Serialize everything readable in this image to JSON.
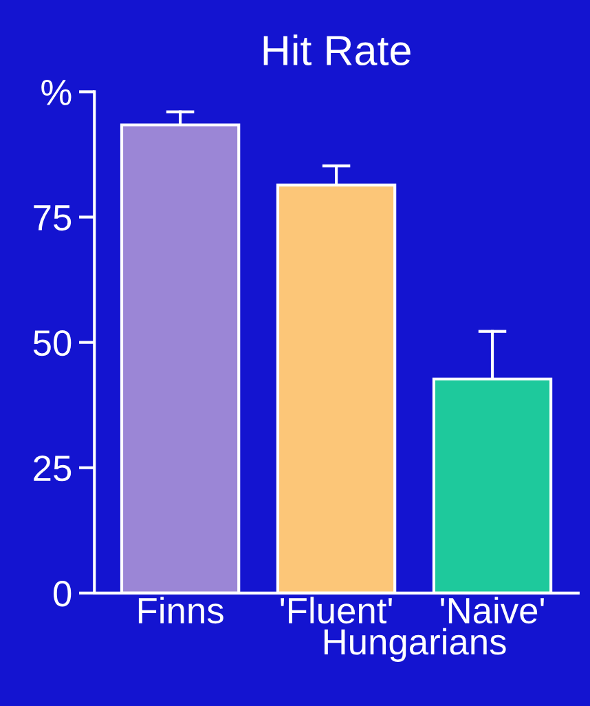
{
  "chart_data": {
    "type": "bar",
    "title": "Hit Rate",
    "xlabel": "Hungarians",
    "categories": [
      "Finns",
      "'Fluent'",
      "'Naive'"
    ],
    "values": [
      93.4,
      81.4,
      42.7
    ],
    "colors": [
      "#9b86d6",
      "#fcc678",
      "#1ec99c"
    ],
    "errors": [
      [
        93.4,
        96
      ],
      [
        81.4,
        85.2
      ],
      [
        42.7,
        52.2
      ]
    ],
    "ylim": [
      0,
      100
    ],
    "yticks": [
      0,
      25,
      50,
      75,
      {
        "value": 100,
        "label": "%"
      }
    ],
    "grid": false
  }
}
